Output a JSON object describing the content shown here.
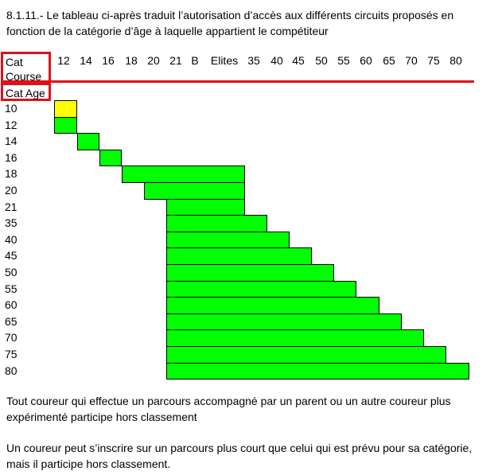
{
  "intro": "8.1.11.- Le tableau ci-après traduit l’autorisation d’accès aux différents circuits proposés en fonction de la catégorie d’âge  à laquelle appartient le compétiteur",
  "header": {
    "course_label_line1": "Cat",
    "course_label_line2": "Course",
    "age_label": "Cat Age"
  },
  "columns": [
    "12",
    "14",
    "16",
    "18",
    "20",
    "21",
    "B",
    "Elites",
    "35",
    "40",
    "45",
    "50",
    "55",
    "60",
    "65",
    "70",
    "75",
    "80"
  ],
  "rows": [
    "10",
    "12",
    "14",
    "16",
    "18",
    "20",
    "21",
    "35",
    "40",
    "45",
    "50",
    "55",
    "60",
    "65",
    "70",
    "75",
    "80"
  ],
  "colors": {
    "allowed": "#00ff00",
    "special": "#ffff00",
    "highlight": "#e0101a"
  },
  "matrix": [
    {
      "row": "10",
      "from": "12",
      "to": "12",
      "color": "special"
    },
    {
      "row": "12",
      "from": "12",
      "to": "12",
      "color": "allowed"
    },
    {
      "row": "14",
      "from": "14",
      "to": "14",
      "color": "allowed"
    },
    {
      "row": "16",
      "from": "16",
      "to": "16",
      "color": "allowed"
    },
    {
      "row": "18",
      "from": "18",
      "to": "Elites",
      "color": "allowed"
    },
    {
      "row": "20",
      "from": "20",
      "to": "Elites",
      "color": "allowed"
    },
    {
      "row": "21",
      "from": "21",
      "to": "Elites",
      "color": "allowed"
    },
    {
      "row": "35",
      "from": "21",
      "to": "35",
      "color": "allowed"
    },
    {
      "row": "40",
      "from": "21",
      "to": "40",
      "color": "allowed"
    },
    {
      "row": "45",
      "from": "21",
      "to": "45",
      "color": "allowed"
    },
    {
      "row": "50",
      "from": "21",
      "to": "50",
      "color": "allowed"
    },
    {
      "row": "55",
      "from": "21",
      "to": "55",
      "color": "allowed"
    },
    {
      "row": "60",
      "from": "21",
      "to": "60",
      "color": "allowed"
    },
    {
      "row": "65",
      "from": "21",
      "to": "65",
      "color": "allowed"
    },
    {
      "row": "70",
      "from": "21",
      "to": "70",
      "color": "allowed"
    },
    {
      "row": "75",
      "from": "21",
      "to": "75",
      "color": "allowed"
    },
    {
      "row": "80",
      "from": "21",
      "to": "80",
      "color": "allowed"
    }
  ],
  "paragraph1": "Tout coureur qui effectue un parcours accompagné par un parent ou un autre coureur plus expérimenté participe hors classement",
  "paragraph2": "Un coureur peut s’inscrire sur un parcours plus court que celui qui est prévu pour sa catégorie, mais il participe hors classement."
}
